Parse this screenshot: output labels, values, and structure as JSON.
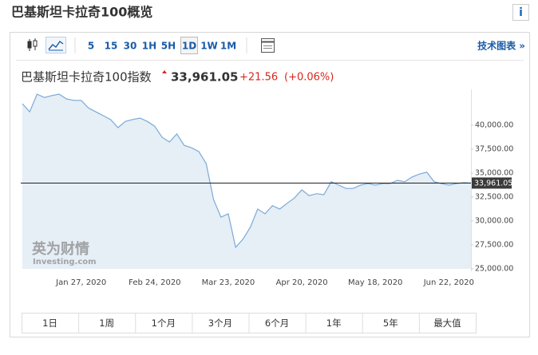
{
  "header": {
    "title": "巴基斯坦卡拉奇100概览",
    "info": "i"
  },
  "toolbar": {
    "intervals": [
      "5",
      "15",
      "30",
      "1H",
      "5H",
      "1D",
      "1W",
      "1M"
    ],
    "selected": "1D",
    "technical": "技术图表 »"
  },
  "quote": {
    "name": "巴基斯坦卡拉奇100指数",
    "price": "33,961.05",
    "change": "+21.56",
    "change_pct": "(+0.06%)"
  },
  "watermark": {
    "brand": "英为财情",
    "site": "Investing.com"
  },
  "chart_data": {
    "type": "area",
    "categories": [
      null,
      null,
      null,
      null,
      null,
      null,
      null,
      null,
      "Jan 27, 2020",
      null,
      null,
      null,
      null,
      null,
      null,
      null,
      null,
      null,
      "Feb 24, 2020",
      null,
      null,
      null,
      null,
      null,
      null,
      null,
      null,
      null,
      "Mar 23, 2020",
      null,
      null,
      null,
      null,
      null,
      null,
      null,
      null,
      null,
      "Apr 20, 2020",
      null,
      null,
      null,
      null,
      null,
      null,
      null,
      null,
      null,
      "May 18, 2020",
      null,
      null,
      null,
      null,
      null,
      null,
      null,
      null,
      null,
      "Jun 22, 2020",
      null,
      null,
      null
    ],
    "values": [
      42250,
      41400,
      43250,
      42900,
      43100,
      43250,
      42750,
      42600,
      42600,
      41800,
      41400,
      41000,
      40600,
      39750,
      40400,
      40600,
      40750,
      40400,
      39900,
      38750,
      38250,
      39100,
      37900,
      37650,
      37250,
      36000,
      32250,
      30400,
      30750,
      27250,
      28100,
      29350,
      31250,
      30750,
      31600,
      31250,
      31850,
      32400,
      33250,
      32650,
      32850,
      32750,
      34100,
      33750,
      33400,
      33400,
      33750,
      33900,
      33750,
      33900,
      33900,
      34250,
      34100,
      34600,
      34900,
      35100,
      34100,
      33900,
      33750,
      33900,
      34000,
      33961.05
    ],
    "color": "#7aaad8",
    "fill": "#e6eef6",
    "ylim": [
      25000,
      43750
    ],
    "yticks": [
      {
        "value": 25000,
        "label": "25,000.00"
      },
      {
        "value": 27500,
        "label": "27,500.00"
      },
      {
        "value": 30000,
        "label": "30,000.00"
      },
      {
        "value": 32500,
        "label": "32,500.00"
      },
      {
        "value": 35000,
        "label": "35,000.00"
      },
      {
        "value": 37500,
        "label": "37,500.00"
      },
      {
        "value": 40000,
        "label": "40,000.00"
      }
    ],
    "grid": false
  },
  "ranges": [
    "1日",
    "1周",
    "1个月",
    "3个月",
    "6个月",
    "1年",
    "5年",
    "最大值"
  ]
}
